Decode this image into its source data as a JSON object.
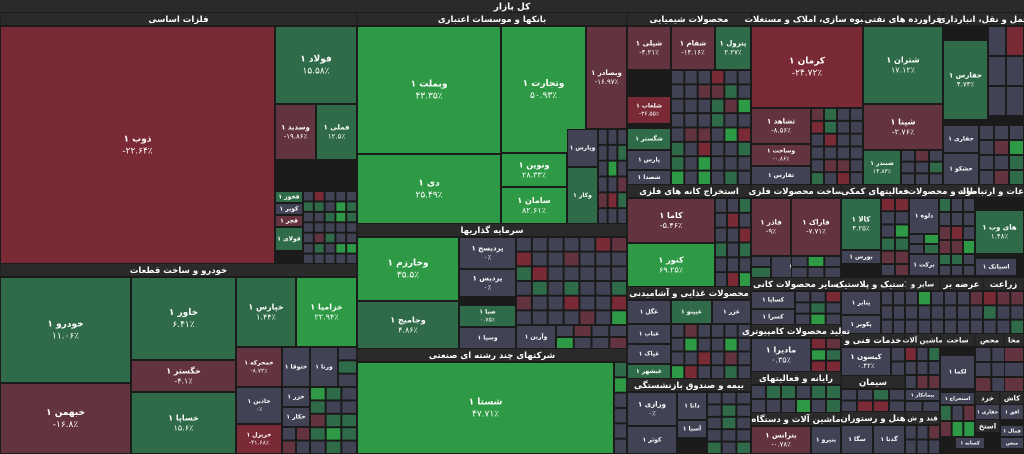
{
  "chart_data": {
    "type": "treemap",
    "title": "کل بازار",
    "colors": {
      "strong_pos": "#2f9a45",
      "pos": "#2f6b48",
      "neutral": "#424255",
      "neg": "#63343f",
      "strong_neg": "#7a2a35",
      "header": "#2a2a2a",
      "background": "#1b1b1b"
    },
    "sectors": [
      {
        "name": "فلزات اساسی",
        "items": [
          {
            "name": "ذوب ۱",
            "value": "-۲۲.۶۴٪",
            "change": -22.64
          },
          {
            "name": "فولاد ۱",
            "value": "۱۵.۵۸٪",
            "change": 15.58
          },
          {
            "name": "وسدید ۱",
            "value": "-۱۹.۸۶٪",
            "change": -19.86
          },
          {
            "name": "فملی ۱",
            "value": "۱۲.۵٪",
            "change": 12.5
          },
          {
            "name": "فخوز ۱",
            "value": "",
            "change": 1
          },
          {
            "name": "کویر ۱",
            "value": "",
            "change": 0
          },
          {
            "name": "فجر ۱",
            "value": "",
            "change": -5
          },
          {
            "name": "فولای ۱",
            "value": "",
            "change": 1
          }
        ]
      },
      {
        "name": "بانکها و موسسات اعتباری",
        "items": [
          {
            "name": "وبملت ۱",
            "value": "۴۳.۳۵٪",
            "change": 43.35
          },
          {
            "name": "وتجارت ۱",
            "value": "۵۰.۹۳٪",
            "change": 50.93
          },
          {
            "name": "وبصادر ۱",
            "value": "-۱۶.۹۷٪",
            "change": -16.97
          },
          {
            "name": "دی ۱",
            "value": "۲۵.۴۹٪",
            "change": 25.49
          },
          {
            "name": "ونوین ۱",
            "value": "۲۸.۳۳٪",
            "change": 28.33
          },
          {
            "name": "وپارس ۱",
            "value": "",
            "change": 0
          },
          {
            "name": "سامان ۱",
            "value": "۸۲.۶۱٪",
            "change": 82.61
          },
          {
            "name": "وکار ۱",
            "value": "",
            "change": 2
          }
        ]
      },
      {
        "name": "محصولات شیمیایی",
        "items": [
          {
            "name": "شپلی ۱",
            "value": "-۴.۲۱٪",
            "change": -4.21
          },
          {
            "name": "شفام ۱",
            "value": "-۱۴.۱۶٪",
            "change": -14.16
          },
          {
            "name": "پترول ۱",
            "value": "۲.۲۷٪",
            "change": 2.27
          },
          {
            "name": "شلعاب ۱",
            "value": "-۳۶.۵۵٪",
            "change": -36.55
          },
          {
            "name": "شگستر ۱",
            "value": "",
            "change": 1
          },
          {
            "name": "پارس ۱",
            "value": "",
            "change": 0
          },
          {
            "name": "شصدا ۱",
            "value": "",
            "change": 0
          }
        ]
      },
      {
        "name": "انبوه سازی، املاک و مستغلات",
        "items": [
          {
            "name": "کرمان ۱",
            "value": "-۲۴.۷۲٪",
            "change": -24.72
          },
          {
            "name": "ثشاهد ۱",
            "value": "-۸.۵۶٪",
            "change": -8.56
          },
          {
            "name": "وساخت ۱",
            "value": "-۰.۸۶٪",
            "change": -0.86
          },
          {
            "name": "ثفارس ۱",
            "value": "",
            "change": 0
          }
        ]
      },
      {
        "name": "فراورده های نفتی",
        "items": [
          {
            "name": "شتران ۱",
            "value": "۱۷.۱۲٪",
            "change": 17.12
          },
          {
            "name": "شپنا ۱",
            "value": "-۲.۷۶٪",
            "change": -2.76
          },
          {
            "name": "شبندر ۱",
            "value": "۱۴.۸۳٪",
            "change": 14.83
          }
        ]
      },
      {
        "name": "حمل و نقل، انبارداری",
        "items": [
          {
            "name": "حفارس ۱",
            "value": "۴.۷۳٪",
            "change": 4.73
          },
          {
            "name": "حفاری ۱",
            "value": "",
            "change": 0
          },
          {
            "name": "حشکو ۱",
            "value": "",
            "change": 0
          }
        ]
      },
      {
        "name": "استخراج کانه های فلزی",
        "items": [
          {
            "name": "کاما ۱",
            "value": "-۵.۴۶٪",
            "change": -5.46
          },
          {
            "name": "کنور ۱",
            "value": "۶۹.۲۵٪",
            "change": 69.25
          }
        ]
      },
      {
        "name": "ساخت محصولات فلزی",
        "items": [
          {
            "name": "فاذر ۱",
            "value": "-۹٪",
            "change": -9
          },
          {
            "name": "فاراک ۱",
            "value": "-۷.۷۱٪",
            "change": -7.71
          },
          {
            "name": "کیا ۱",
            "value": "",
            "change": 0
          }
        ]
      },
      {
        "name": "فعالیتهای کمکی",
        "items": [
          {
            "name": "کالا ۱",
            "value": "۴.۲۵٪",
            "change": 4.25
          },
          {
            "name": "بورس ۱",
            "value": "",
            "change": 0
          }
        ]
      },
      {
        "name": "مواد و محصولات",
        "items": [
          {
            "name": "دلوه ۱",
            "value": "",
            "change": 0
          },
          {
            "name": "برکت ۱",
            "value": "",
            "change": 0
          }
        ]
      },
      {
        "name": "اطلاعات و ارتباطات",
        "items": [
          {
            "name": "دکوثر ۱",
            "value": "",
            "change": 0
          },
          {
            "name": "های وب ۱",
            "value": "۱.۴۸٪",
            "change": 1.48
          },
          {
            "name": "اسیاتک ۱",
            "value": "",
            "change": 0
          }
        ]
      },
      {
        "name": "خودرو و ساخت قطعات",
        "items": [
          {
            "name": "خودرو ۱",
            "value": "۱۱.۰۶٪",
            "change": 11.06
          },
          {
            "name": "خاور ۱",
            "value": "۶.۴۱٪",
            "change": 6.41
          },
          {
            "name": "خپارس ۱",
            "value": "۱.۴۴٪",
            "change": 1.44
          },
          {
            "name": "خزامیا ۱",
            "value": "۲۲.۹۴٪",
            "change": 22.94
          },
          {
            "name": "خگستر ۱",
            "value": "-۴.۱٪",
            "change": -4.1
          },
          {
            "name": "خمحرکه ۱",
            "value": "-۸.۷۲٪",
            "change": -8.72
          },
          {
            "name": "ختوقا ۱",
            "value": "",
            "change": 0
          },
          {
            "name": "ورنا ۱",
            "value": "",
            "change": 0
          },
          {
            "name": "خبهمن ۱",
            "value": "-۱۶.۸٪",
            "change": -16.8
          },
          {
            "name": "خساپا ۱",
            "value": "۱۵.۶٪",
            "change": 15.6
          },
          {
            "name": "خاذین ۱",
            "value": "۰٪",
            "change": 0
          },
          {
            "name": "خریزل ۱",
            "value": "-۴۱.۶۸٪",
            "change": -41.68
          },
          {
            "name": "خزر ۱",
            "value": "",
            "change": 0
          },
          {
            "name": "خکار ۱",
            "value": "",
            "change": 0
          }
        ]
      },
      {
        "name": "سرمایه گذاریها",
        "items": [
          {
            "name": "وخارزم ۱",
            "value": "۳۵.۵٪",
            "change": 35.5
          },
          {
            "name": "پردیسج ۱",
            "value": "۰٪",
            "change": 0
          },
          {
            "name": "پردیس ۱",
            "value": "۰٪",
            "change": 0
          },
          {
            "name": "وجامیج ۱",
            "value": "۴.۸۶٪",
            "change": 4.86
          },
          {
            "name": "صبا ۱",
            "value": "۰.۷۵٪",
            "change": 0.75
          },
          {
            "name": "وسپا ۱",
            "value": "",
            "change": 0
          },
          {
            "name": "وآرین ۱",
            "value": "",
            "change": 0
          }
        ]
      },
      {
        "name": "شرکتهای چند رشته ای صنعتی",
        "items": [
          {
            "name": "شستا ۱",
            "value": "۴۷.۷۱٪",
            "change": 47.71
          }
        ]
      },
      {
        "name": "محصولات غذایی و آشامیدنی",
        "items": [
          {
            "name": "غگل ۱",
            "value": "",
            "change": 0
          },
          {
            "name": "غیپنو ۱",
            "value": "",
            "change": 3
          },
          {
            "name": "غزر ۱",
            "value": "",
            "change": 0
          },
          {
            "name": "غناب ۱",
            "value": "",
            "change": 0
          },
          {
            "name": "غپاک ۱",
            "value": "",
            "change": 0
          },
          {
            "name": "غبشهر ۱",
            "value": "",
            "change": 1
          }
        ]
      },
      {
        "name": "سایر محصولات کانی",
        "items": [
          {
            "name": "کساپا ۱",
            "value": "",
            "change": 0
          },
          {
            "name": "کسرا ۱",
            "value": "",
            "change": 0
          }
        ]
      },
      {
        "name": "تولید محصولات کامپیوتری",
        "items": [
          {
            "name": "مادیرا ۱",
            "value": "۰.۳۵٪",
            "change": 0.35
          }
        ]
      },
      {
        "name": "رایانه و فعالیتهای",
        "items": []
      },
      {
        "name": "بیمه و صندوق بازنشستگی",
        "items": [
          {
            "name": "ورازی ۱",
            "value": "۰٪",
            "change": 0
          },
          {
            "name": "دانا ۱",
            "value": "",
            "change": 0
          },
          {
            "name": "آسیا ۱",
            "value": "",
            "change": 0
          },
          {
            "name": "کوثر ۱",
            "value": "",
            "change": 0
          }
        ]
      },
      {
        "name": "ماشین آلات و دستگاه",
        "items": [
          {
            "name": "بترانس ۱",
            "value": "-۰.۷۸٪",
            "change": -0.78
          },
          {
            "name": "بنیرو ۱",
            "value": "",
            "change": 0
          }
        ]
      },
      {
        "name": "لاستیک و پلاستیک",
        "items": [
          {
            "name": "پتایر ۱",
            "value": "",
            "change": 0
          },
          {
            "name": "پکویر ۱",
            "value": "",
            "change": 0
          }
        ]
      },
      {
        "name": "سایر و",
        "items": []
      },
      {
        "name": "خدمات فنی و",
        "items": []
      },
      {
        "name": "سیمان، آهک",
        "items": [
          {
            "name": "کیسون ۱",
            "value": "۰.۴۲٪",
            "change": 0.42
          }
        ]
      },
      {
        "name": "سیمان",
        "items": [
          {
            "name": "پیمانکار ۱",
            "value": "",
            "change": 0
          },
          {
            "name": "لکما ۱",
            "value": "",
            "change": 0
          }
        ]
      },
      {
        "name": "هتل و رستوران",
        "items": [
          {
            "name": "سگا ۱",
            "value": "",
            "change": 0
          },
          {
            "name": "گدنا ۱",
            "value": "",
            "change": 0
          }
        ]
      },
      {
        "name": "قند و ش",
        "items": []
      },
      {
        "name": "ماشین آلات",
        "items": []
      },
      {
        "name": "زراعت",
        "items": []
      },
      {
        "name": "عرضه بر",
        "items": []
      },
      {
        "name": "ساخت",
        "items": []
      },
      {
        "name": "محص",
        "items": []
      },
      {
        "name": "مخا",
        "items": []
      },
      {
        "name": "خرد",
        "items": []
      },
      {
        "name": "کاش",
        "items": []
      },
      {
        "name": "استخ",
        "items": [
          {
            "name": "استخراج ۱",
            "value": "",
            "change": 0
          },
          {
            "name": "حفاری ۱",
            "value": "",
            "change": 0
          },
          {
            "name": "فمال ۱",
            "value": "",
            "change": 0
          },
          {
            "name": "کسانه ۱",
            "value": "",
            "change": 0
          },
          {
            "name": "منس",
            "value": "",
            "change": 0
          },
          {
            "name": "افق ۱",
            "value": "",
            "change": 0
          }
        ]
      }
    ]
  }
}
